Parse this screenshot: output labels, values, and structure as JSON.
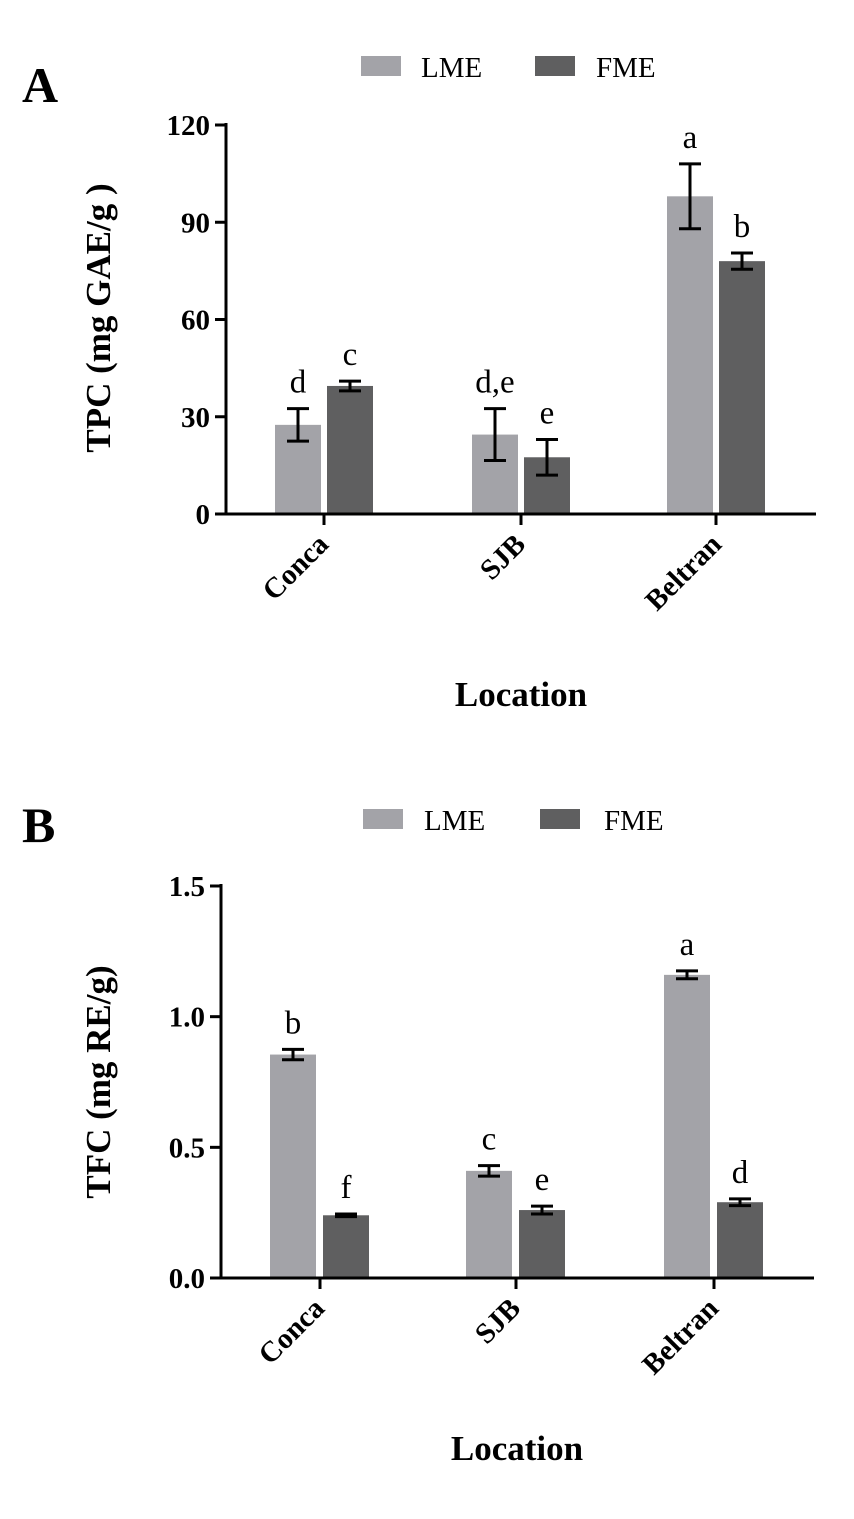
{
  "legend": {
    "series": [
      {
        "name": "LME",
        "color": "#a3a3a8"
      },
      {
        "name": "FME",
        "color": "#5f5f60"
      }
    ]
  },
  "chart_data": [
    {
      "panel": "A",
      "type": "bar",
      "categories": [
        "Conca",
        "SJB",
        "Beltran"
      ],
      "series": [
        {
          "name": "LME",
          "values": [
            27.5,
            24.5,
            98.0
          ],
          "errors": [
            5.0,
            8.0,
            10.0
          ],
          "labels": [
            "d",
            "d,e",
            "a"
          ]
        },
        {
          "name": "FME",
          "values": [
            39.5,
            17.5,
            78.0
          ],
          "errors": [
            1.5,
            5.5,
            2.5
          ],
          "labels": [
            "c",
            "e",
            "b"
          ]
        }
      ],
      "xlabel": "Location",
      "ylabel": "TPC (mg GAE/g )",
      "ylim": [
        0,
        120
      ],
      "yticks": [
        0,
        30,
        60,
        90,
        120
      ],
      "ytick_labels": [
        "0",
        "30",
        "60",
        "90",
        "120"
      ],
      "legend": "top-center",
      "grid": false
    },
    {
      "panel": "B",
      "type": "bar",
      "categories": [
        "Conca",
        "SJB",
        "Beltran"
      ],
      "series": [
        {
          "name": "LME",
          "values": [
            0.855,
            0.41,
            1.16
          ],
          "errors": [
            0.02,
            0.02,
            0.015
          ],
          "labels": [
            "b",
            "c",
            "a"
          ]
        },
        {
          "name": "FME",
          "values": [
            0.24,
            0.26,
            0.29
          ],
          "errors": [
            0.005,
            0.015,
            0.013
          ],
          "labels": [
            "f",
            "e",
            "d"
          ]
        }
      ],
      "xlabel": "Location",
      "ylabel": "TFC (mg RE/g)",
      "ylim": [
        0,
        1.5
      ],
      "yticks": [
        0,
        0.5,
        1.0,
        1.5
      ],
      "ytick_labels": [
        "0.0",
        "0.5",
        "1.0",
        "1.5"
      ],
      "legend": "top-center",
      "grid": false
    }
  ]
}
